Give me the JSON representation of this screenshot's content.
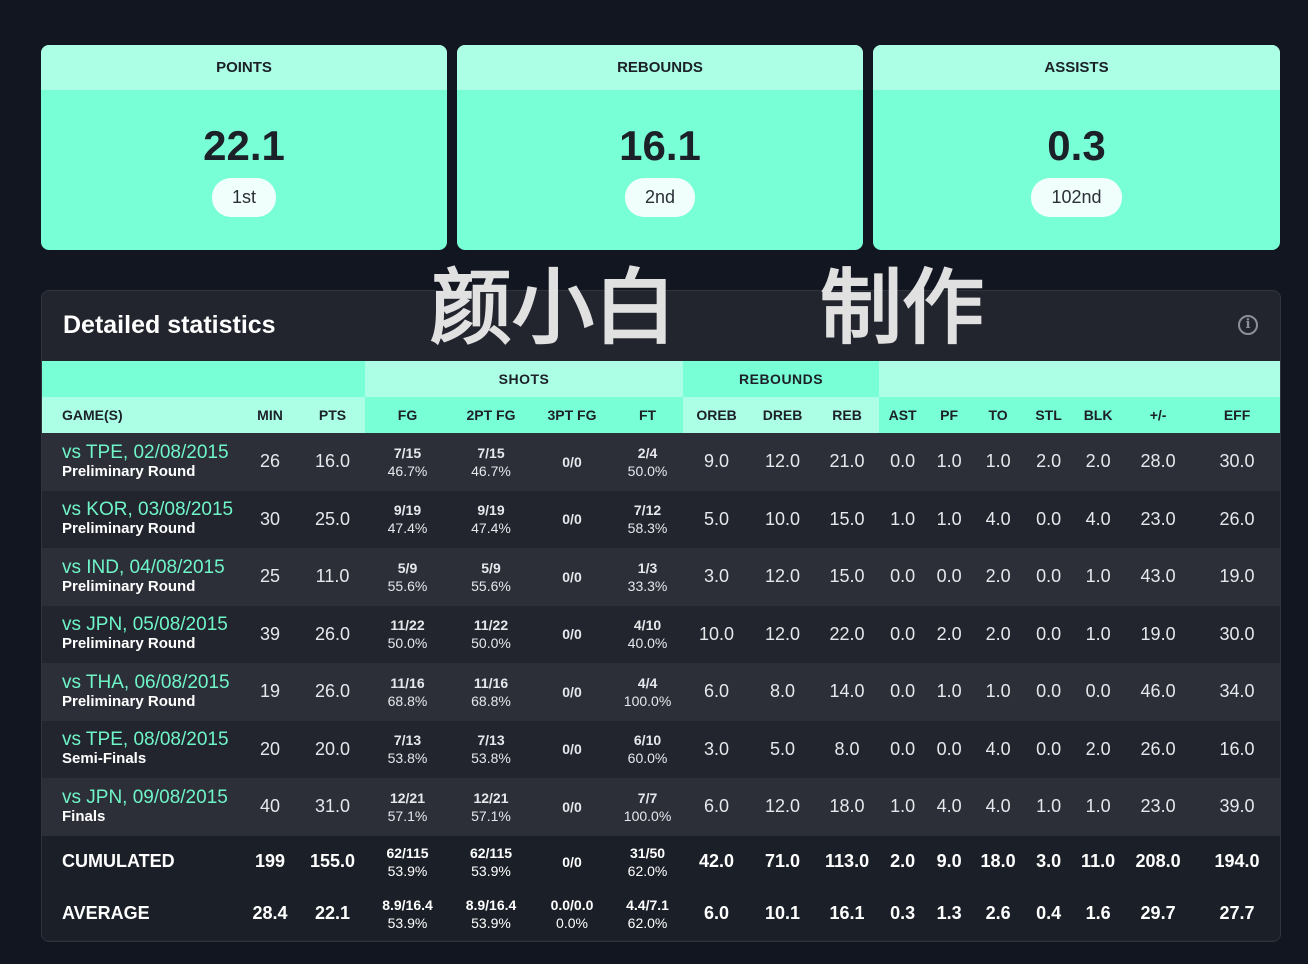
{
  "cards": [
    {
      "label": "POINTS",
      "value": "22.1",
      "rank": "1st"
    },
    {
      "label": "REBOUNDS",
      "value": "16.1",
      "rank": "2nd"
    },
    {
      "label": "ASSISTS",
      "value": "0.3",
      "rank": "102nd"
    }
  ],
  "stats": {
    "title": "Detailed statistics",
    "info_icon": "info-circle-icon",
    "groups": [
      {
        "label": "",
        "span": 3
      },
      {
        "label": "SHOTS",
        "span": 4
      },
      {
        "label": "REBOUNDS",
        "span": 3
      },
      {
        "label": "",
        "span": 7
      }
    ],
    "columns": [
      "GAME(S)",
      "MIN",
      "PTS",
      "FG",
      "2PT FG",
      "3PT FG",
      "FT",
      "OREB",
      "DREB",
      "REB",
      "AST",
      "PF",
      "TO",
      "STL",
      "BLK",
      "+/-",
      "EFF"
    ],
    "rows": [
      {
        "game": "vs TPE, 02/08/2015",
        "round": "Preliminary Round",
        "min": "26",
        "pts": "16.0",
        "fg": [
          "7/15",
          "46.7%"
        ],
        "fg2": [
          "7/15",
          "46.7%"
        ],
        "fg3": [
          "0/0",
          ""
        ],
        "ft": [
          "2/4",
          "50.0%"
        ],
        "rest": [
          "9.0",
          "12.0",
          "21.0",
          "0.0",
          "1.0",
          "1.0",
          "2.0",
          "2.0",
          "28.0",
          "30.0"
        ]
      },
      {
        "game": "vs KOR, 03/08/2015",
        "round": "Preliminary Round",
        "min": "30",
        "pts": "25.0",
        "fg": [
          "9/19",
          "47.4%"
        ],
        "fg2": [
          "9/19",
          "47.4%"
        ],
        "fg3": [
          "0/0",
          ""
        ],
        "ft": [
          "7/12",
          "58.3%"
        ],
        "rest": [
          "5.0",
          "10.0",
          "15.0",
          "1.0",
          "1.0",
          "4.0",
          "0.0",
          "4.0",
          "23.0",
          "26.0"
        ]
      },
      {
        "game": "vs IND, 04/08/2015",
        "round": "Preliminary Round",
        "min": "25",
        "pts": "11.0",
        "fg": [
          "5/9",
          "55.6%"
        ],
        "fg2": [
          "5/9",
          "55.6%"
        ],
        "fg3": [
          "0/0",
          ""
        ],
        "ft": [
          "1/3",
          "33.3%"
        ],
        "rest": [
          "3.0",
          "12.0",
          "15.0",
          "0.0",
          "0.0",
          "2.0",
          "0.0",
          "1.0",
          "43.0",
          "19.0"
        ]
      },
      {
        "game": "vs JPN, 05/08/2015",
        "round": "Preliminary Round",
        "min": "39",
        "pts": "26.0",
        "fg": [
          "11/22",
          "50.0%"
        ],
        "fg2": [
          "11/22",
          "50.0%"
        ],
        "fg3": [
          "0/0",
          ""
        ],
        "ft": [
          "4/10",
          "40.0%"
        ],
        "rest": [
          "10.0",
          "12.0",
          "22.0",
          "0.0",
          "2.0",
          "2.0",
          "0.0",
          "1.0",
          "19.0",
          "30.0"
        ]
      },
      {
        "game": "vs THA, 06/08/2015",
        "round": "Preliminary Round",
        "min": "19",
        "pts": "26.0",
        "fg": [
          "11/16",
          "68.8%"
        ],
        "fg2": [
          "11/16",
          "68.8%"
        ],
        "fg3": [
          "0/0",
          ""
        ],
        "ft": [
          "4/4",
          "100.0%"
        ],
        "rest": [
          "6.0",
          "8.0",
          "14.0",
          "0.0",
          "1.0",
          "1.0",
          "0.0",
          "0.0",
          "46.0",
          "34.0"
        ]
      },
      {
        "game": "vs TPE, 08/08/2015",
        "round": "Semi-Finals",
        "min": "20",
        "pts": "20.0",
        "fg": [
          "7/13",
          "53.8%"
        ],
        "fg2": [
          "7/13",
          "53.8%"
        ],
        "fg3": [
          "0/0",
          ""
        ],
        "ft": [
          "6/10",
          "60.0%"
        ],
        "rest": [
          "3.0",
          "5.0",
          "8.0",
          "0.0",
          "0.0",
          "4.0",
          "0.0",
          "2.0",
          "26.0",
          "16.0"
        ]
      },
      {
        "game": "vs JPN, 09/08/2015",
        "round": "Finals",
        "min": "40",
        "pts": "31.0",
        "fg": [
          "12/21",
          "57.1%"
        ],
        "fg2": [
          "12/21",
          "57.1%"
        ],
        "fg3": [
          "0/0",
          ""
        ],
        "ft": [
          "7/7",
          "100.0%"
        ],
        "rest": [
          "6.0",
          "12.0",
          "18.0",
          "1.0",
          "4.0",
          "4.0",
          "1.0",
          "1.0",
          "23.0",
          "39.0"
        ]
      }
    ],
    "totals": [
      {
        "game": "CUMULATED",
        "min": "199",
        "pts": "155.0",
        "fg": [
          "62/115",
          "53.9%"
        ],
        "fg2": [
          "62/115",
          "53.9%"
        ],
        "fg3": [
          "0/0",
          ""
        ],
        "ft": [
          "31/50",
          "62.0%"
        ],
        "rest": [
          "42.0",
          "71.0",
          "113.0",
          "2.0",
          "9.0",
          "18.0",
          "3.0",
          "11.0",
          "208.0",
          "194.0"
        ]
      },
      {
        "game": "AVERAGE",
        "min": "28.4",
        "pts": "22.1",
        "fg": [
          "8.9/16.4",
          "53.9%"
        ],
        "fg2": [
          "8.9/16.4",
          "53.9%"
        ],
        "fg3": [
          "0.0/0.0",
          "0.0%"
        ],
        "ft": [
          "4.4/7.1",
          "62.0%"
        ],
        "rest": [
          "6.0",
          "10.1",
          "16.1",
          "0.3",
          "1.3",
          "2.6",
          "0.4",
          "1.6",
          "29.7",
          "27.7"
        ]
      }
    ]
  },
  "watermark": [
    "颜小白",
    "制作"
  ],
  "colors": {
    "accent": "#78ffd6",
    "accent_light": "#acffe5",
    "link": "#6ff5c8",
    "background": "#111620",
    "panel": "#22252d"
  }
}
